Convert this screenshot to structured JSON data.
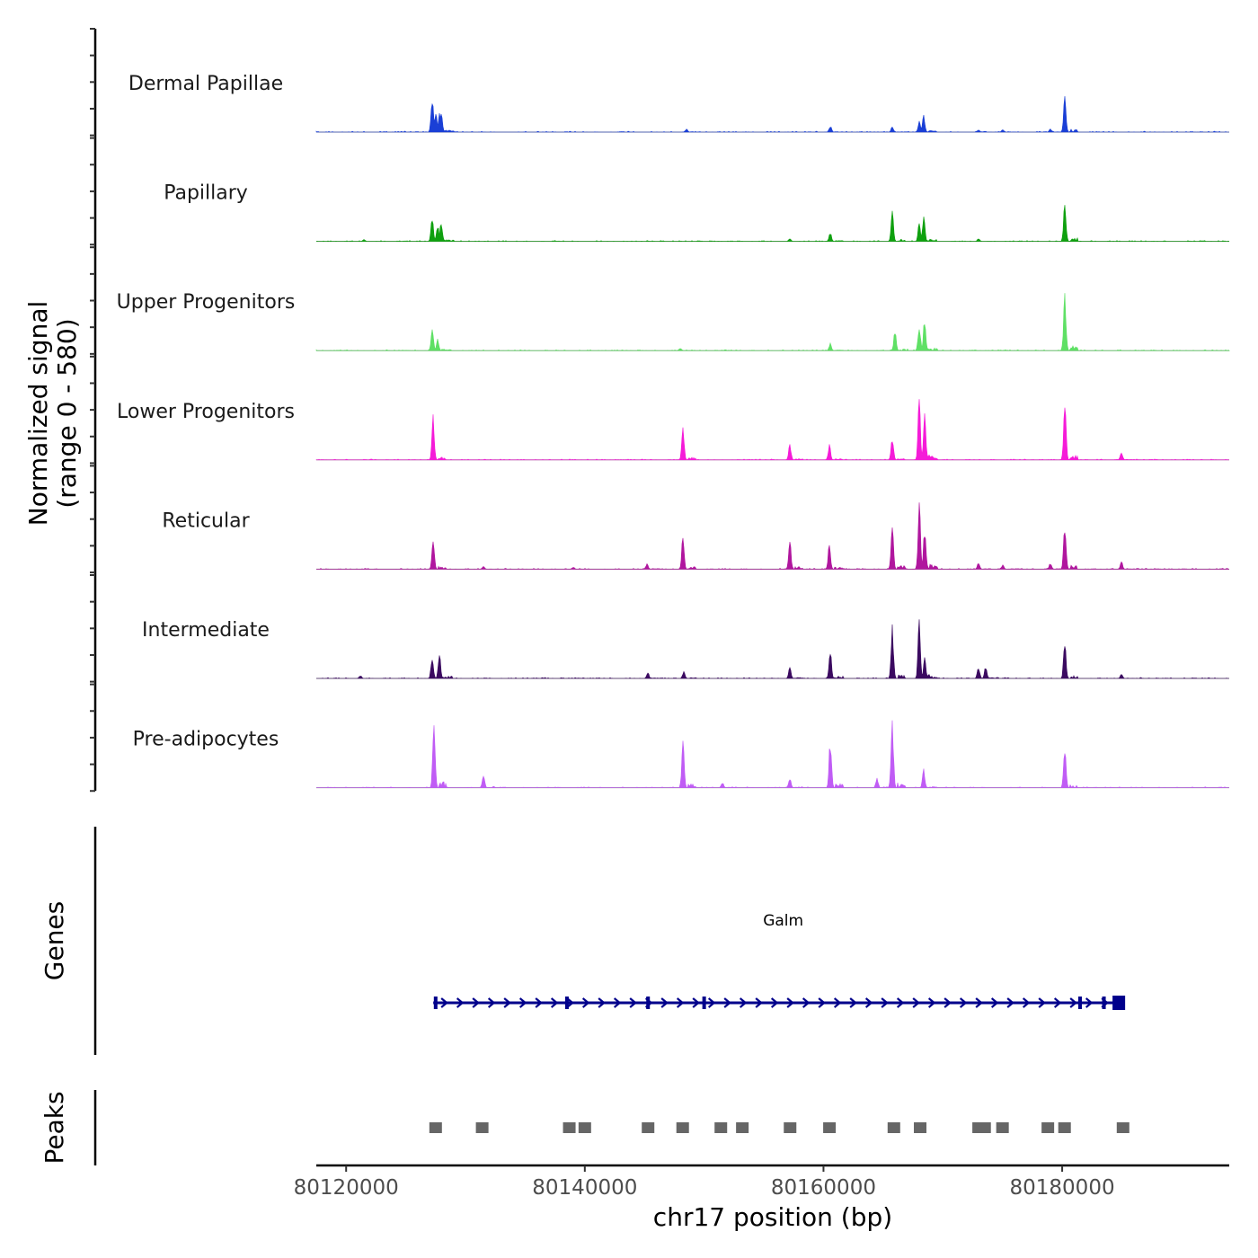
{
  "chart_data": {
    "type": "area",
    "title": "",
    "chromosome": "chr17",
    "xlim": [
      80117500,
      80194000
    ],
    "xlabel": "chr17 position (bp)",
    "ylabel_line1": "Normalized signal",
    "ylabel_line2": "(range 0 - 580)",
    "ylim": [
      0,
      580
    ],
    "x_ticks": [
      80120000,
      80140000,
      80160000,
      80180000
    ],
    "x_tick_labels": [
      "80120000",
      "80140000",
      "80160000",
      "80180000"
    ],
    "series": [
      {
        "name": "Dermal Papillae",
        "color": "#1a3fd6",
        "peaks": [
          {
            "pos": 80127250,
            "value": 330
          },
          {
            "pos": 80127500,
            "value": 200
          },
          {
            "pos": 80127800,
            "value": 200
          },
          {
            "pos": 80128000,
            "value": 210
          },
          {
            "pos": 80148500,
            "value": 30
          },
          {
            "pos": 80160600,
            "value": 60
          },
          {
            "pos": 80165800,
            "value": 55
          },
          {
            "pos": 80168000,
            "value": 110
          },
          {
            "pos": 80168400,
            "value": 170
          },
          {
            "pos": 80173000,
            "value": 25
          },
          {
            "pos": 80175000,
            "value": 25
          },
          {
            "pos": 80179000,
            "value": 30
          },
          {
            "pos": 80180200,
            "value": 390
          }
        ]
      },
      {
        "name": "Papillary",
        "color": "#0fa00f",
        "peaks": [
          {
            "pos": 80121500,
            "value": 20
          },
          {
            "pos": 80127200,
            "value": 230
          },
          {
            "pos": 80127700,
            "value": 170
          },
          {
            "pos": 80128000,
            "value": 200
          },
          {
            "pos": 80157200,
            "value": 25
          },
          {
            "pos": 80160600,
            "value": 90
          },
          {
            "pos": 80165800,
            "value": 290
          },
          {
            "pos": 80168000,
            "value": 180
          },
          {
            "pos": 80168400,
            "value": 250
          },
          {
            "pos": 80173000,
            "value": 30
          },
          {
            "pos": 80180200,
            "value": 420
          }
        ]
      },
      {
        "name": "Upper Progenitors",
        "color": "#5fe065",
        "peaks": [
          {
            "pos": 80127250,
            "value": 230
          },
          {
            "pos": 80127700,
            "value": 120
          },
          {
            "pos": 80148000,
            "value": 25
          },
          {
            "pos": 80160600,
            "value": 70
          },
          {
            "pos": 80166000,
            "value": 200
          },
          {
            "pos": 80168000,
            "value": 270
          },
          {
            "pos": 80168500,
            "value": 310
          },
          {
            "pos": 80180200,
            "value": 580
          }
        ]
      },
      {
        "name": "Lower Progenitors",
        "color": "#f51bd8",
        "peaks": [
          {
            "pos": 80127300,
            "value": 430
          },
          {
            "pos": 80148200,
            "value": 320
          },
          {
            "pos": 80157200,
            "value": 160
          },
          {
            "pos": 80160500,
            "value": 150
          },
          {
            "pos": 80165800,
            "value": 220
          },
          {
            "pos": 80168000,
            "value": 600
          },
          {
            "pos": 80168500,
            "value": 480
          },
          {
            "pos": 80180200,
            "value": 610
          },
          {
            "pos": 80185000,
            "value": 70
          }
        ]
      },
      {
        "name": "Reticular",
        "color": "#b0169e",
        "peaks": [
          {
            "pos": 80127300,
            "value": 330
          },
          {
            "pos": 80131500,
            "value": 25
          },
          {
            "pos": 80139000,
            "value": 20
          },
          {
            "pos": 80145200,
            "value": 55
          },
          {
            "pos": 80148200,
            "value": 320
          },
          {
            "pos": 80157200,
            "value": 300
          },
          {
            "pos": 80160500,
            "value": 250
          },
          {
            "pos": 80165800,
            "value": 430
          },
          {
            "pos": 80168000,
            "value": 680
          },
          {
            "pos": 80168500,
            "value": 390
          },
          {
            "pos": 80173000,
            "value": 70
          },
          {
            "pos": 80175000,
            "value": 40
          },
          {
            "pos": 80179000,
            "value": 60
          },
          {
            "pos": 80180200,
            "value": 480
          },
          {
            "pos": 80185000,
            "value": 75
          }
        ]
      },
      {
        "name": "Intermediate",
        "color": "#3b0a60",
        "peaks": [
          {
            "pos": 80121200,
            "value": 30
          },
          {
            "pos": 80127200,
            "value": 230
          },
          {
            "pos": 80127800,
            "value": 270
          },
          {
            "pos": 80145300,
            "value": 60
          },
          {
            "pos": 80148300,
            "value": 70
          },
          {
            "pos": 80157200,
            "value": 110
          },
          {
            "pos": 80160600,
            "value": 270
          },
          {
            "pos": 80165800,
            "value": 520
          },
          {
            "pos": 80168000,
            "value": 560
          },
          {
            "pos": 80168500,
            "value": 200
          },
          {
            "pos": 80173000,
            "value": 120
          },
          {
            "pos": 80173600,
            "value": 120
          },
          {
            "pos": 80180200,
            "value": 400
          },
          {
            "pos": 80185000,
            "value": 40
          }
        ]
      },
      {
        "name": "Pre-adipocytes",
        "color": "#c05cf5",
        "peaks": [
          {
            "pos": 80127400,
            "value": 720
          },
          {
            "pos": 80131500,
            "value": 140
          },
          {
            "pos": 80148200,
            "value": 450
          },
          {
            "pos": 80151500,
            "value": 50
          },
          {
            "pos": 80157200,
            "value": 100
          },
          {
            "pos": 80160600,
            "value": 480
          },
          {
            "pos": 80164500,
            "value": 90
          },
          {
            "pos": 80165800,
            "value": 650
          },
          {
            "pos": 80168400,
            "value": 180
          },
          {
            "pos": 80180200,
            "value": 430
          }
        ]
      }
    ],
    "genes": [
      {
        "name": "Galm",
        "start": 80127300,
        "end": 80185200,
        "strand": "+",
        "color": "#00008b",
        "exons": [
          80127500,
          80138500,
          80145300,
          80150000,
          80181500,
          80183500,
          80185200
        ]
      }
    ],
    "peaks_track_label": "Peaks",
    "genes_track_label": "Genes",
    "peaks_color": "#666666",
    "peak_regions": [
      80127500,
      80131400,
      80138700,
      80140000,
      80145300,
      80148200,
      80151400,
      80153200,
      80157200,
      80160500,
      80165900,
      80168100,
      80173000,
      80173500,
      80175000,
      80178800,
      80180200,
      80185100
    ]
  }
}
